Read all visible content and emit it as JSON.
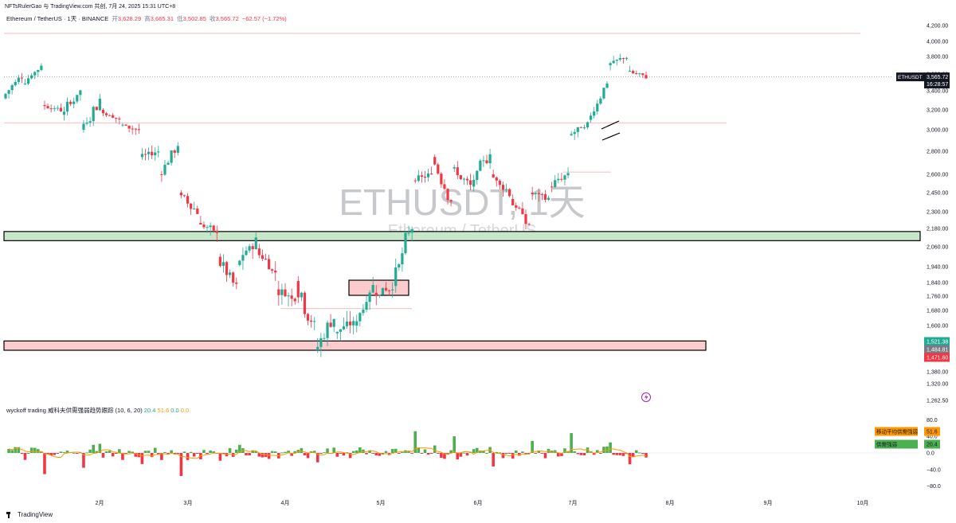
{
  "header": {
    "publisher": "NFTsRulerGao 与 TradingView.com 共创, 7月 24, 2025 15:31 UTC+8",
    "symbol_line": "Ethereum / TetherUS · 1天 · BINANCE",
    "ohlc": {
      "open_label": "开",
      "open": "3,628.29",
      "high_label": "高",
      "high": "3,665.31",
      "low_label": "低",
      "low": "3,502.85",
      "close_label": "收",
      "close": "3,565.72",
      "change": "−62.57 (−1.72%)"
    }
  },
  "watermark": {
    "symbol": "ETHUSDT, 1天",
    "name": "Ethereum / TetherUS"
  },
  "price_tag": {
    "symbol": "ETHUSDT",
    "price": "3,565.72",
    "countdown": "16:28:57"
  },
  "level_tags": [
    {
      "value": "1,521.38",
      "color": "#22ab94"
    },
    {
      "value": "1,484.81",
      "color": "#787b86"
    },
    {
      "value": "1,471.60",
      "color": "#f23645"
    }
  ],
  "indicator": {
    "title": "wyckoff trading 威科夫供需强弱趋势跟踪 (10, 6, 20)",
    "values": [
      "20.4",
      "51.6",
      "0.0",
      "0.0"
    ],
    "ma_label": "移动平均供需强弱",
    "ma_value": "51.6",
    "sd_label": "供需强弱",
    "sd_value": "20.4"
  },
  "footer": {
    "brand": "TradingView"
  },
  "colors": {
    "up": "#22ab94",
    "down": "#f23645",
    "hist_up": "#4caf50",
    "hist_down": "#f23645",
    "ma": "#ff9800"
  },
  "chart_data": {
    "type": "candlestick",
    "price_axis": {
      "ticks": [
        1262.5,
        1320,
        1380,
        1440,
        1521.38,
        1600,
        1680,
        1760,
        1840,
        1940,
        2060,
        2180,
        2300,
        2450,
        2600,
        2800,
        3000,
        3200,
        3400,
        3600,
        3800,
        4000,
        4200
      ],
      "tick_labels": [
        "1,262.50",
        "1,320.00",
        "1,380.00",
        "1,440.00",
        "",
        "1,600.00",
        "1,680.00",
        "1,760.00",
        "1,840.00",
        "1,940.00",
        "2,060.00",
        "2,180.00",
        "2,300.00",
        "2,450.00",
        "2,600.00",
        "2,800.00",
        "3,000.00",
        "3,200.00",
        "3,400.00",
        "3,600.00",
        "3,800.00",
        "4,000.00",
        "4,200.00"
      ]
    },
    "time_axis": {
      "labels": [
        "2月",
        "3月",
        "4月",
        "5月",
        "6月",
        "7月",
        "8月",
        "9月",
        "10月"
      ]
    },
    "indicator_axis": {
      "ticks": [
        80,
        40,
        0,
        -40,
        -80
      ],
      "tick_labels": [
        "80.0",
        "40.0",
        "0.0",
        "−40.0",
        "−80.0"
      ]
    },
    "zones": [
      {
        "name": "support-zone",
        "from": 2100,
        "to": 2160,
        "color": "#c8e6c9"
      },
      {
        "name": "demand-zone",
        "from": 1470,
        "to": 1520,
        "color": "#fccbcd"
      }
    ],
    "levels": [
      4100,
      3070,
      1690,
      2620
    ],
    "series": [
      {
        "name": "ETHUSDT",
        "waypoints": [
          [
            3320,
            3600
          ],
          [
            3480,
            3700
          ],
          [
            3250,
            3200
          ],
          [
            3150,
            3400
          ],
          [
            3000,
            3300
          ],
          [
            3200,
            3100
          ],
          [
            3050,
            3000
          ],
          [
            2750,
            2800
          ],
          [
            2600,
            2850
          ],
          [
            2450,
            2300
          ],
          [
            2220,
            2150
          ],
          [
            2000,
            1800
          ],
          [
            1950,
            2100
          ],
          [
            2050,
            1900
          ],
          [
            1800,
            1750
          ],
          [
            1850,
            1580
          ],
          [
            1470,
            1650
          ],
          [
            1560,
            1620
          ],
          [
            1600,
            1820
          ],
          [
            1780,
            1800
          ],
          [
            1820,
            2200
          ],
          [
            2550,
            2600
          ],
          [
            2750,
            2400
          ],
          [
            2650,
            2500
          ],
          [
            2500,
            2800
          ],
          [
            2600,
            2450
          ],
          [
            2400,
            2200
          ],
          [
            2450,
            2400
          ],
          [
            2500,
            2600
          ],
          [
            2950,
            3050
          ],
          [
            3100,
            3500
          ],
          [
            3700,
            3800
          ],
          [
            3630,
            3566
          ]
        ]
      }
    ],
    "close": 3565.72,
    "indicator_series": {
      "type": "histogram",
      "ma_line": true
    }
  }
}
